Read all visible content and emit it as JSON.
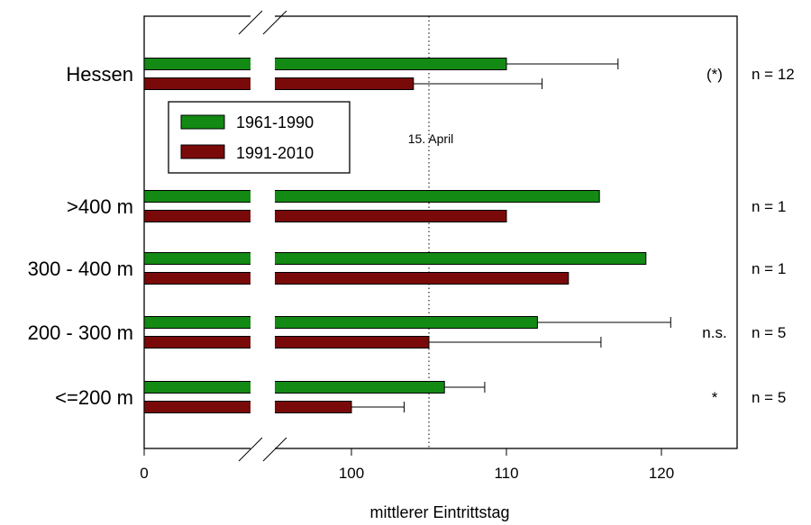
{
  "chart_data": {
    "type": "bar",
    "orientation": "horizontal",
    "xlabel": "mittlerer Eintrittstag",
    "x_ticks": [
      "0",
      "100",
      "110",
      "120"
    ],
    "axis_break": "between 0 and approximately 96",
    "xlim": [
      93,
      125
    ],
    "categories": [
      "Hessen",
      ">400 m",
      "300 - 400 m",
      "200 - 300 m",
      "<=200 m"
    ],
    "series": [
      {
        "name": "1961-1990",
        "color": "#138a13",
        "values": [
          110,
          116,
          119,
          112,
          106
        ],
        "error_plus": [
          7.2,
          null,
          null,
          8.6,
          2.6
        ]
      },
      {
        "name": "1991-2010",
        "color": "#7a0a0a",
        "values": [
          104,
          110,
          114,
          105,
          100
        ],
        "error_plus": [
          8.3,
          null,
          null,
          11.1,
          3.4
        ]
      }
    ],
    "significance": [
      "(*)",
      "",
      "",
      "n.s.",
      "*"
    ],
    "n_labels": [
      "n = 12",
      "n =  1",
      "n =  1",
      "n =  5",
      "n =  5"
    ],
    "reference_line": {
      "label": "15. April",
      "x": 105,
      "style": "dotted"
    },
    "legend_position": "upper-left"
  }
}
